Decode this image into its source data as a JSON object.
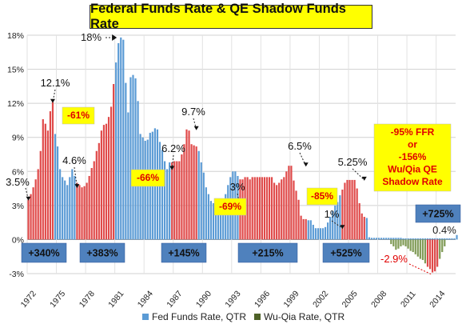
{
  "chart_data": {
    "type": "bar",
    "title": "Federal Funds Rate & QE Shadow Funds Rate",
    "ylim": [
      -3,
      18
    ],
    "y_ticks": [
      "-3%",
      "0%",
      "3%",
      "6%",
      "9%",
      "12%",
      "15%",
      "18%"
    ],
    "y_tick_values": [
      -3,
      0,
      3,
      6,
      9,
      12,
      15,
      18
    ],
    "x_ticks": [
      "1972",
      "1975",
      "1978",
      "1981",
      "1984",
      "1987",
      "1990",
      "1993",
      "1996",
      "1999",
      "2002",
      "2005",
      "2008",
      "2011",
      "2014"
    ],
    "x_range": [
      1972,
      2016
    ],
    "grid": true,
    "legend_position": "bottom",
    "legend": [
      {
        "label": "Fed Funds Rate, QTR",
        "color": "#5b9bd5"
      },
      {
        "label": "Wu-Qia Rate, QTR",
        "color": "#4f6228"
      }
    ],
    "series": [
      {
        "name": "Fed Funds Rate, QTR",
        "start": 1972.0,
        "step": 0.25,
        "values": [
          3.5,
          4.0,
          4.6,
          5.3,
          6.2,
          7.8,
          10.6,
          10.2,
          9.6,
          11.3,
          12.1,
          9.3,
          8.2,
          6.2,
          5.5,
          5.2,
          4.8,
          5.5,
          6.2,
          5.6,
          5.0,
          4.8,
          4.6,
          4.7,
          5.0,
          5.6,
          6.3,
          6.9,
          7.8,
          8.5,
          9.6,
          10.1,
          10.2,
          10.8,
          11.7,
          13.7,
          15.6,
          17.3,
          17.8,
          17.6,
          13.8,
          11.2,
          14.3,
          14.5,
          14.2,
          12.2,
          9.3,
          9.0,
          8.7,
          8.8,
          9.4,
          9.5,
          9.8,
          9.7,
          8.6,
          7.9,
          6.9,
          6.2,
          6.8,
          6.8,
          6.9,
          6.9,
          6.9,
          7.5,
          8.4,
          9.7,
          9.6,
          8.4,
          8.3,
          8.2,
          7.8,
          6.8,
          5.9,
          4.6,
          4.0,
          3.4,
          3.2,
          3.0,
          3.0,
          3.1,
          3.4,
          4.0,
          4.8,
          5.5,
          6.0,
          6.0,
          5.6,
          5.3,
          5.3,
          5.5,
          5.5,
          5.3,
          5.5,
          5.5,
          5.5,
          5.5,
          5.5,
          5.5,
          5.5,
          5.5,
          5.5,
          5.0,
          4.8,
          5.0,
          5.3,
          5.5,
          6.0,
          6.5,
          6.5,
          5.2,
          4.3,
          3.5,
          2.1,
          1.8,
          1.8,
          1.7,
          1.7,
          1.3,
          1.0,
          1.0,
          1.0,
          1.0,
          1.1,
          1.5,
          2.0,
          2.5,
          3.0,
          3.3,
          3.9,
          4.4,
          5.0,
          5.25,
          5.25,
          5.25,
          5.25,
          4.5,
          3.2,
          2.3,
          2.0,
          1.9,
          0.2,
          0.15,
          0.15,
          0.15,
          0.15,
          0.15,
          0.15,
          0.15,
          0.15,
          0.15,
          0.15,
          0.15,
          0.15,
          0.15,
          0.1,
          0.1,
          0.1,
          0.1,
          0.1,
          0.1,
          0.1,
          0.1,
          0.1,
          0.1,
          0.1,
          0.1,
          0.1,
          0.1,
          0.1,
          0.1,
          0.1,
          0.1,
          0.1,
          0.1,
          0.1,
          0.1,
          0.4
        ]
      },
      {
        "name": "Wu-Qia Rate, QTR",
        "start": 2009.25,
        "step": 0.25,
        "values": [
          -0.4,
          -0.6,
          -0.9,
          -0.8,
          -0.6,
          -0.5,
          -0.6,
          -0.8,
          -1.0,
          -1.1,
          -1.3,
          -1.5,
          -1.7,
          -1.8,
          -2.1,
          -2.4,
          -2.6,
          -2.9,
          -2.8,
          -2.4,
          -1.7,
          -1.1,
          -0.6
        ]
      }
    ],
    "highlight_periods": [
      [
        1972.0,
        1974.5
      ],
      [
        1977.0,
        1980.75
      ],
      [
        1986.75,
        1989.25
      ],
      [
        1993.75,
        2000.5
      ],
      [
        2004.25,
        2006.5
      ]
    ],
    "highlight_color": "#e04a4a",
    "annotations": {
      "rate_labels": [
        {
          "text": "3.5%",
          "x": 1972.0,
          "y": 3.5
        },
        {
          "text": "12.1%",
          "x": 1974.5,
          "y": 12.1
        },
        {
          "text": "4.6%",
          "x": 1977.0,
          "y": 4.6
        },
        {
          "text": "18%",
          "x": 1981.0,
          "y": 17.8
        },
        {
          "text": "6.2%",
          "x": 1986.75,
          "y": 6.2
        },
        {
          "text": "9.7%",
          "x": 1989.25,
          "y": 9.7
        },
        {
          "text": "3%",
          "x": 1993.75,
          "y": 3.0
        },
        {
          "text": "6.5%",
          "x": 2000.5,
          "y": 6.5
        },
        {
          "text": "1%",
          "x": 2004.25,
          "y": 1.0
        },
        {
          "text": "5.25%",
          "x": 2006.5,
          "y": 5.25
        },
        {
          "text": "0.4%",
          "x": 2015.75,
          "y": 0.4
        },
        {
          "text": "-2.9%",
          "x": 2013.5,
          "y": -2.9
        }
      ],
      "decline_labels": [
        "-61%",
        "-66%",
        "-69%",
        "-85%",
        "-95% FFR",
        "or",
        "-156%",
        "Wu/Qia QE",
        "Shadow Rate"
      ],
      "gain_labels": [
        "+340%",
        "+383%",
        "+145%",
        "+215%",
        "+525%",
        "+725%"
      ]
    }
  }
}
